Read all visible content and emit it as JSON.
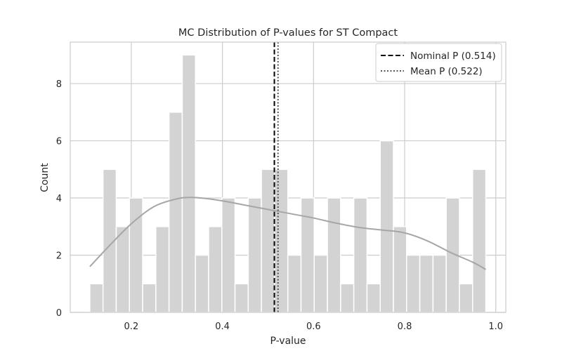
{
  "chart_data": {
    "type": "bar",
    "title": "MC Distribution of P-values for ST Compact",
    "xlabel": "P-value",
    "ylabel": "Count",
    "xlim": [
      0.066,
      1.022
    ],
    "ylim": [
      0,
      9.45
    ],
    "xticks": [
      0.2,
      0.4,
      0.6,
      0.8,
      1.0
    ],
    "xtick_labels": [
      "0.2",
      "0.4",
      "0.6",
      "0.8",
      "1.0"
    ],
    "yticks": [
      0,
      2,
      4,
      6,
      8
    ],
    "ytick_labels": [
      "0",
      "2",
      "4",
      "6",
      "8"
    ],
    "grid": true,
    "legend_position": "top-right",
    "bins": {
      "start": 0.109,
      "width": 0.02897,
      "counts": [
        1,
        5,
        3,
        4,
        1,
        3,
        7,
        9,
        2,
        3,
        4,
        1,
        4,
        5,
        5,
        2,
        4,
        2,
        4,
        1,
        4,
        1,
        6,
        3,
        2,
        2,
        2,
        4,
        1,
        5
      ]
    },
    "kde": {
      "x": [
        0.109,
        0.15,
        0.2,
        0.25,
        0.3,
        0.33,
        0.36,
        0.4,
        0.45,
        0.5,
        0.55,
        0.6,
        0.65,
        0.7,
        0.75,
        0.8,
        0.85,
        0.9,
        0.95,
        0.978
      ],
      "y": [
        1.6,
        2.3,
        3.1,
        3.7,
        3.97,
        4.02,
        3.99,
        3.9,
        3.75,
        3.6,
        3.45,
        3.3,
        3.12,
        2.97,
        2.88,
        2.78,
        2.5,
        2.1,
        1.75,
        1.5
      ],
      "color": "#a6a6a6"
    },
    "bar_color": "#d3d3d3",
    "reference_lines": [
      {
        "name": "Nominal P (0.514)",
        "value": 0.514,
        "style": "dashed",
        "color": "#000000"
      },
      {
        "name": "Mean P (0.522)",
        "value": 0.522,
        "style": "dotted",
        "color": "#555555"
      }
    ]
  }
}
